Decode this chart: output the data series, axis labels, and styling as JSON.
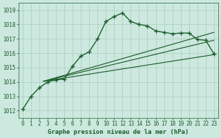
{
  "bg_color": "#cce8df",
  "grid_color": "#aaccbf",
  "line_color": "#1a5c2a",
  "title": "Graphe pression niveau de la mer (hPa)",
  "xlim": [
    -0.5,
    23.5
  ],
  "ylim": [
    1011.5,
    1019.5
  ],
  "xticks": [
    0,
    1,
    2,
    3,
    4,
    5,
    6,
    7,
    8,
    9,
    10,
    11,
    12,
    13,
    14,
    15,
    16,
    17,
    18,
    19,
    20,
    21,
    22,
    23
  ],
  "yticks": [
    1012,
    1013,
    1014,
    1015,
    1016,
    1017,
    1018,
    1019
  ],
  "main_series": {
    "x": [
      0,
      1,
      2,
      3,
      4,
      5,
      6,
      7,
      8,
      9,
      10,
      11,
      12,
      13,
      14,
      15,
      16,
      17,
      18,
      19,
      20,
      21,
      22,
      23
    ],
    "y": [
      1012.1,
      1013.0,
      1013.6,
      1014.0,
      1014.15,
      1014.2,
      1015.1,
      1015.8,
      1016.1,
      1017.0,
      1018.2,
      1018.55,
      1018.8,
      1018.2,
      1018.0,
      1017.9,
      1017.55,
      1017.45,
      1017.35,
      1017.4,
      1017.4,
      1016.95,
      1016.9,
      1015.95
    ]
  },
  "ref_lines": [
    {
      "x": [
        2.5,
        23
      ],
      "y": [
        1014.05,
        1017.45
      ]
    },
    {
      "x": [
        2.5,
        23
      ],
      "y": [
        1014.05,
        1016.9
      ]
    },
    {
      "x": [
        2.5,
        23
      ],
      "y": [
        1014.05,
        1015.9
      ]
    }
  ],
  "tick_fontsize": 5.5,
  "title_fontsize": 6.5,
  "linewidth": 1.0,
  "marker": "+",
  "markersize": 4,
  "markeredgewidth": 1.0
}
